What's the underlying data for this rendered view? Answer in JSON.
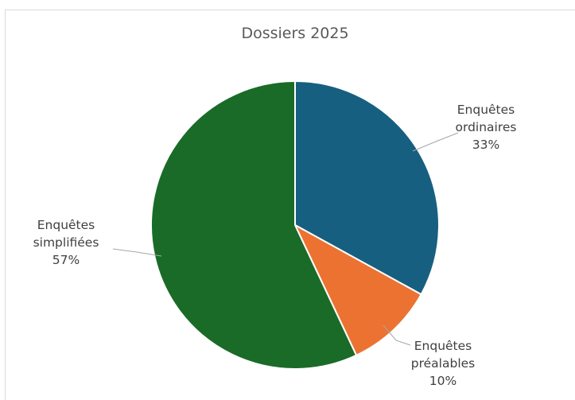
{
  "chart_data": {
    "type": "pie",
    "title": "Dossiers 2025",
    "slices": [
      {
        "name": "Enquêtes ordinaires",
        "label_lines": [
          "Enquêtes",
          "ordinaires"
        ],
        "value_label": "33%",
        "value": 33,
        "color": "#175F80"
      },
      {
        "name": "Enquêtes préalables",
        "label_lines": [
          "Enquêtes",
          "préalables"
        ],
        "value_label": "10%",
        "value": 10,
        "color": "#EC7232"
      },
      {
        "name": "Enquêtes simplifiées",
        "label_lines": [
          "Enquêtes",
          "simplifiées"
        ],
        "value_label": "57%",
        "value": 57,
        "color": "#1A6B27"
      }
    ],
    "start_angle_deg": 0,
    "direction": "clockwise",
    "legend": "none",
    "data_labels": "outside-with-leader-lines"
  }
}
